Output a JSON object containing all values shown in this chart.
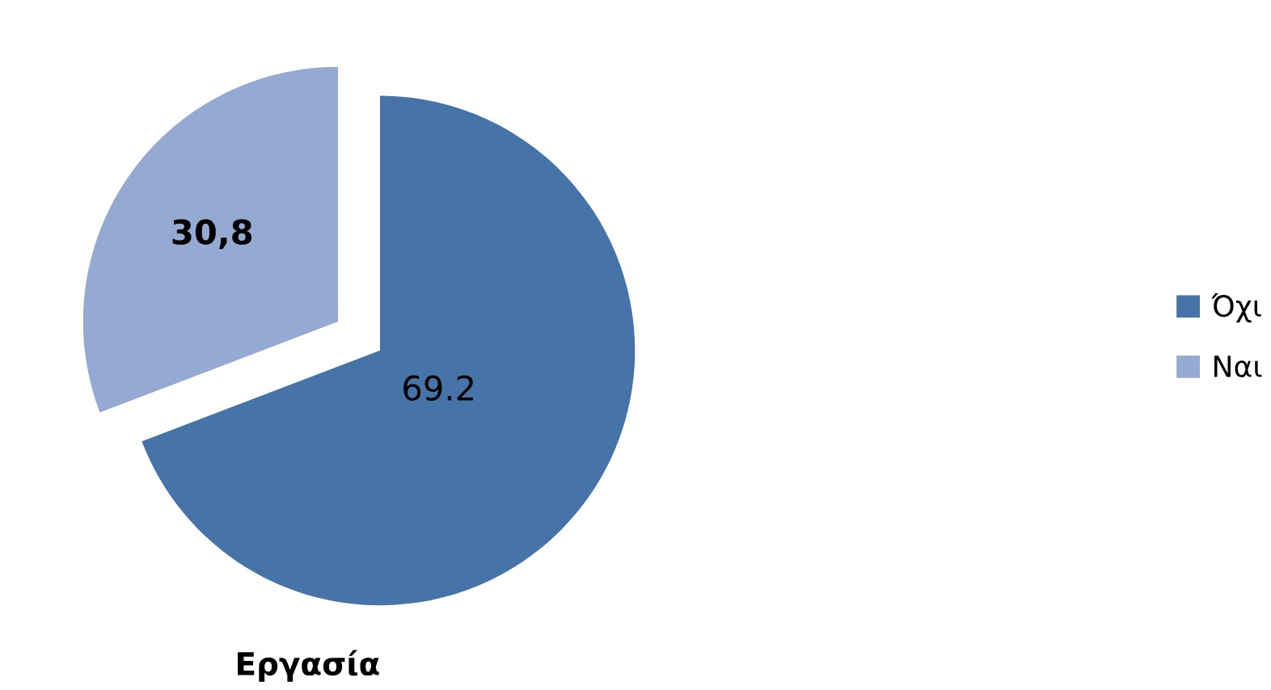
{
  "chart_data": {
    "type": "pie",
    "title": "Εργασία",
    "categories": [
      "Όχι",
      "Ναι"
    ],
    "values": [
      69.2,
      30.8
    ],
    "colors": [
      "#4674a9",
      "#95aad2"
    ],
    "value_labels": [
      "69.2",
      "30,8"
    ],
    "legend": "right"
  }
}
